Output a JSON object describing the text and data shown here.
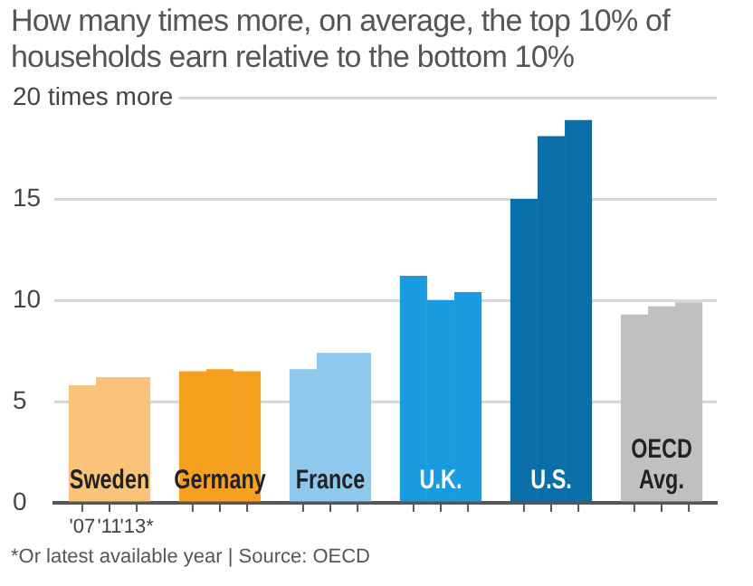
{
  "chart_data": {
    "type": "bar",
    "title": "How many times more, on average, the top 10% of households earn relative to the bottom 10%",
    "categories": [
      "Sweden",
      "Germany",
      "France",
      "U.K.",
      "U.S.",
      "OECD Avg."
    ],
    "series": [
      {
        "name": "'07",
        "colors": [
          "#f9c47a",
          "#f5a01f",
          "#8ec8ec",
          "#1a9be0",
          "#0a6fa8",
          "#c0c0c0"
        ],
        "values": [
          5.8,
          6.5,
          6.6,
          11.2,
          15.0,
          9.3
        ]
      },
      {
        "name": "'11",
        "colors": [
          "#f9c47a",
          "#f5a01f",
          "#8ec8ec",
          "#1a9be0",
          "#0a6fa8",
          "#c0c0c0"
        ],
        "values": [
          6.2,
          6.6,
          7.4,
          10.0,
          18.1,
          9.7
        ]
      },
      {
        "name": "'13*",
        "colors": [
          "#f9c47a",
          "#f5a01f",
          "#8ec8ec",
          "#1a9be0",
          "#0a6fa8",
          "#c0c0c0"
        ],
        "values": [
          6.2,
          6.5,
          7.4,
          10.4,
          18.9,
          9.9
        ]
      }
    ],
    "ylim": [
      0,
      20
    ],
    "yticks": [
      0,
      5,
      10,
      15,
      {
        "value": 20,
        "label": "20 times more"
      }
    ],
    "grid": "y",
    "legend": false,
    "annotations": [
      "*Or latest available year | Source: OECD"
    ]
  }
}
